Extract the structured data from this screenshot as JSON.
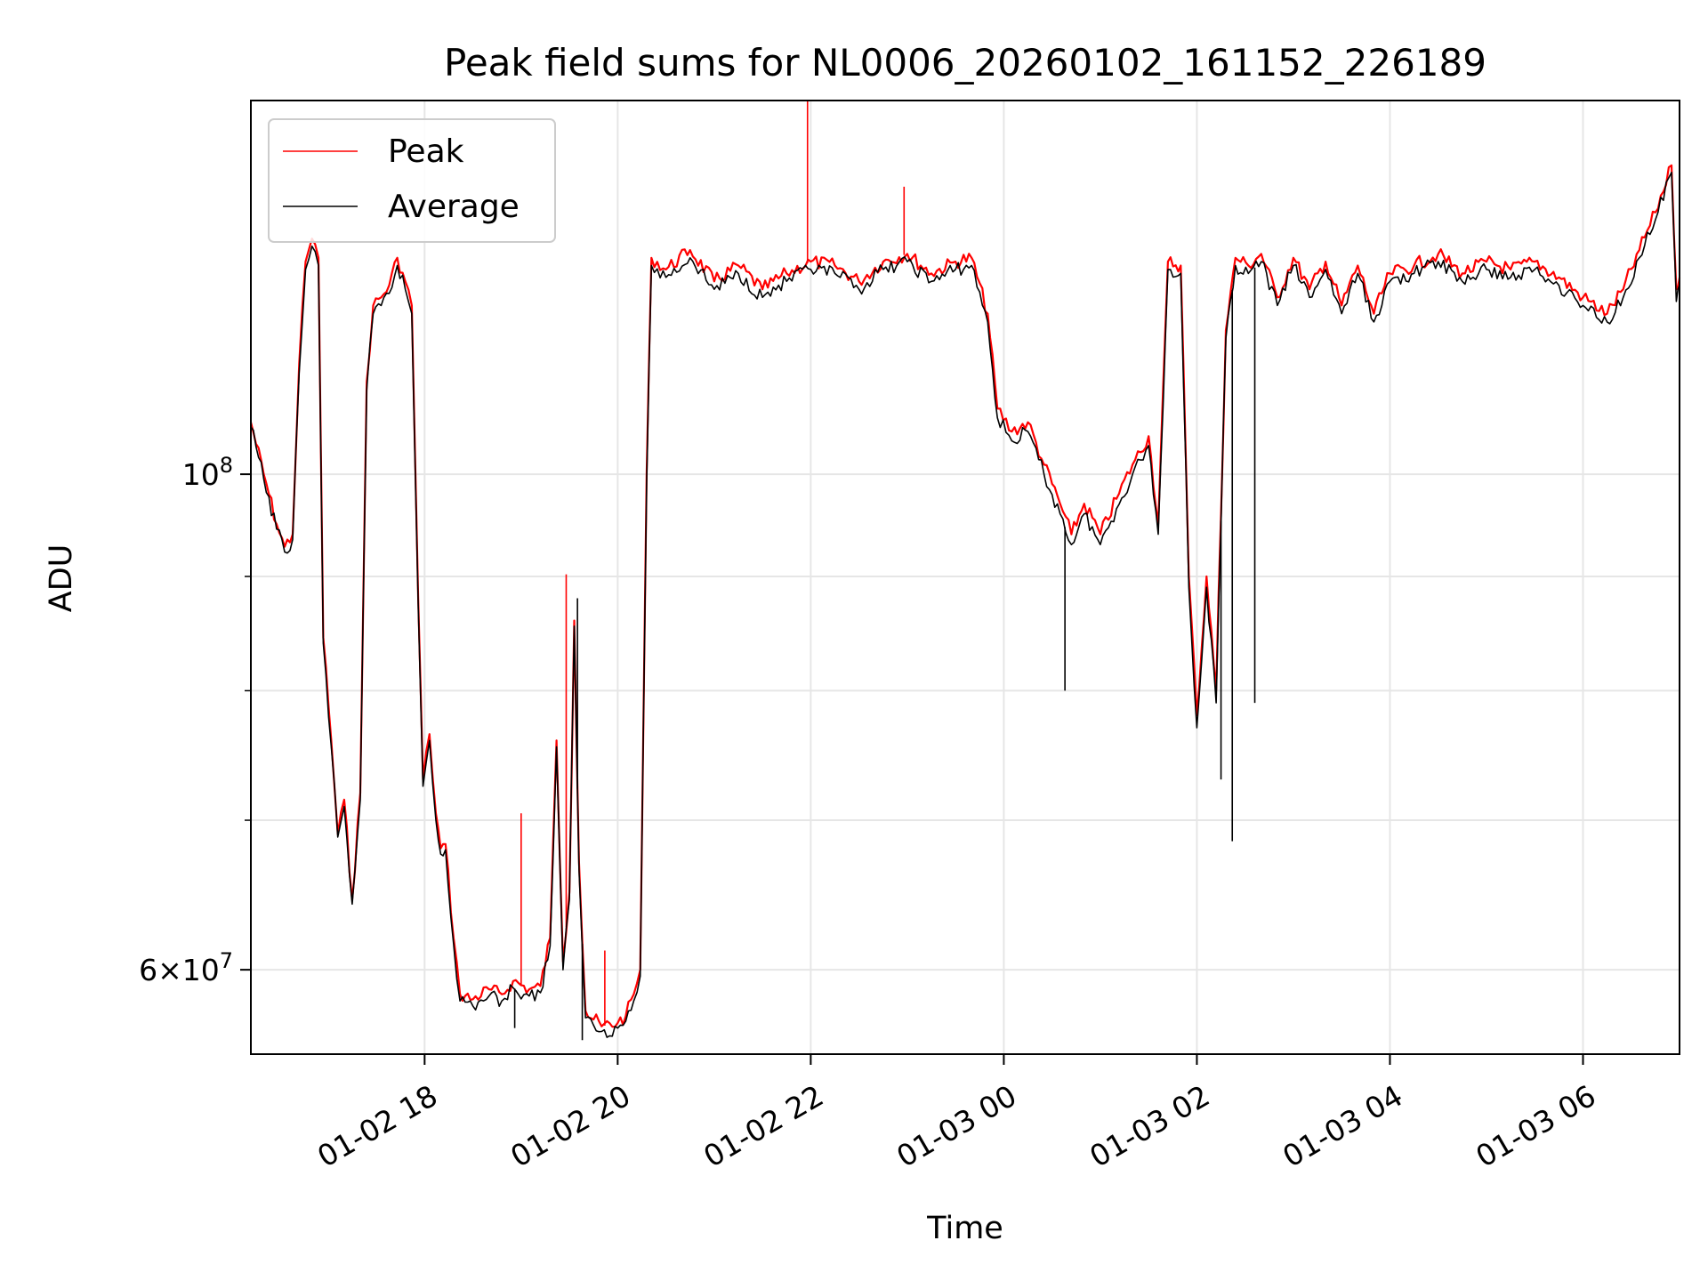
{
  "chart_data": {
    "type": "line",
    "title": "Peak field sums for NL0006_20260102_161152_226189",
    "xlabel": "Time",
    "ylabel": "ADU",
    "y_scale": "log",
    "grid": true,
    "legend_position": "top-left",
    "x_range": [
      "2026-01-02 16:12",
      "2026-01-03 07:00"
    ],
    "y_range": [
      55000000,
      147000000
    ],
    "x_ticks": [
      {
        "value": "2026-01-02 18:00",
        "label": "01-02 18"
      },
      {
        "value": "2026-01-02 20:00",
        "label": "01-02 20"
      },
      {
        "value": "2026-01-02 22:00",
        "label": "01-02 22"
      },
      {
        "value": "2026-01-03 00:00",
        "label": "01-03 00"
      },
      {
        "value": "2026-01-03 02:00",
        "label": "01-03 02"
      },
      {
        "value": "2026-01-03 04:00",
        "label": "01-03 04"
      },
      {
        "value": "2026-01-03 06:00",
        "label": "01-03 06"
      }
    ],
    "y_ticks_major": [
      {
        "value": 60000000,
        "label_base": "6",
        "label_exp": "7"
      },
      {
        "value": 100000000,
        "label_base": "10",
        "label_exp": "8"
      }
    ],
    "y_ticks_minor": [
      70000000,
      80000000,
      90000000
    ],
    "series": [
      {
        "name": "Peak",
        "color": "#ff0000",
        "points": [
          [
            "2026-01-02 16:12",
            105500000
          ],
          [
            "2026-01-02 16:20",
            100000000
          ],
          [
            "2026-01-02 16:28",
            95000000
          ],
          [
            "2026-01-02 16:33",
            92800000
          ],
          [
            "2026-01-02 16:38",
            94000000
          ],
          [
            "2026-01-02 16:42",
            112000000
          ],
          [
            "2026-01-02 16:46",
            124500000
          ],
          [
            "2026-01-02 16:50",
            127500000
          ],
          [
            "2026-01-02 16:54",
            125000000
          ],
          [
            "2026-01-02 16:57",
            84500000
          ],
          [
            "2026-01-02 17:02",
            76000000
          ],
          [
            "2026-01-02 17:06",
            69000000
          ],
          [
            "2026-01-02 17:10",
            71500000
          ],
          [
            "2026-01-02 17:15",
            64500000
          ],
          [
            "2026-01-02 17:20",
            72000000
          ],
          [
            "2026-01-02 17:24",
            110000000
          ],
          [
            "2026-01-02 17:28",
            119000000
          ],
          [
            "2026-01-02 17:33",
            120000000
          ],
          [
            "2026-01-02 17:38",
            121500000
          ],
          [
            "2026-01-02 17:43",
            125000000
          ],
          [
            "2026-01-02 17:48",
            122000000
          ],
          [
            "2026-01-02 17:52",
            119000000
          ],
          [
            "2026-01-02 17:56",
            88000000
          ],
          [
            "2026-01-02 17:59",
            73000000
          ],
          [
            "2026-01-02 18:03",
            76500000
          ],
          [
            "2026-01-02 18:07",
            70500000
          ],
          [
            "2026-01-02 18:10",
            68000000
          ],
          [
            "2026-01-02 18:13",
            68300000
          ],
          [
            "2026-01-02 18:18",
            62000000
          ],
          [
            "2026-01-02 18:22",
            58500000
          ],
          [
            "2026-01-02 18:30",
            58200000
          ],
          [
            "2026-01-02 18:40",
            58800000
          ],
          [
            "2026-01-02 18:48",
            58500000
          ],
          [
            "2026-01-02 18:55",
            59300000
          ],
          [
            "2026-01-02 19:05",
            58800000
          ],
          [
            "2026-01-02 19:12",
            59000000
          ],
          [
            "2026-01-02 19:18",
            62000000
          ],
          [
            "2026-01-02 19:22",
            76000000
          ],
          [
            "2026-01-02 19:26",
            60500000
          ],
          [
            "2026-01-02 19:30",
            65000000
          ],
          [
            "2026-01-02 19:33",
            86000000
          ],
          [
            "2026-01-02 19:36",
            67000000
          ],
          [
            "2026-01-02 19:40",
            57500000
          ],
          [
            "2026-01-02 19:50",
            56600000
          ],
          [
            "2026-01-02 20:00",
            56800000
          ],
          [
            "2026-01-02 20:05",
            57200000
          ],
          [
            "2026-01-02 20:10",
            58500000
          ],
          [
            "2026-01-02 20:14",
            60000000
          ],
          [
            "2026-01-02 20:18",
            100000000
          ],
          [
            "2026-01-02 20:21",
            125000000
          ],
          [
            "2026-01-02 20:30",
            123500000
          ],
          [
            "2026-01-02 20:45",
            126000000
          ],
          [
            "2026-01-02 21:00",
            122000000
          ],
          [
            "2026-01-02 21:15",
            124000000
          ],
          [
            "2026-01-02 21:30",
            121000000
          ],
          [
            "2026-01-02 21:45",
            123000000
          ],
          [
            "2026-01-02 22:00",
            124500000
          ],
          [
            "2026-01-02 22:15",
            124000000
          ],
          [
            "2026-01-02 22:30",
            122000000
          ],
          [
            "2026-01-02 22:45",
            124500000
          ],
          [
            "2026-01-02 23:00",
            125500000
          ],
          [
            "2026-01-02 23:15",
            123000000
          ],
          [
            "2026-01-02 23:30",
            124500000
          ],
          [
            "2026-01-02 23:40",
            125000000
          ],
          [
            "2026-01-02 23:50",
            118000000
          ],
          [
            "2026-01-02 23:56",
            107000000
          ],
          [
            "2026-01-03 00:05",
            104500000
          ],
          [
            "2026-01-03 00:15",
            105500000
          ],
          [
            "2026-01-03 00:25",
            101000000
          ],
          [
            "2026-01-03 00:35",
            97000000
          ],
          [
            "2026-01-03 00:42",
            94000000
          ],
          [
            "2026-01-03 00:50",
            97000000
          ],
          [
            "2026-01-03 01:00",
            94000000
          ],
          [
            "2026-01-03 01:10",
            97500000
          ],
          [
            "2026-01-03 01:20",
            101000000
          ],
          [
            "2026-01-03 01:30",
            104000000
          ],
          [
            "2026-01-03 01:36",
            95000000
          ],
          [
            "2026-01-03 01:42",
            124500000
          ],
          [
            "2026-01-03 01:50",
            124000000
          ],
          [
            "2026-01-03 01:55",
            90000000
          ],
          [
            "2026-01-03 02:00",
            78000000
          ],
          [
            "2026-01-03 02:06",
            90000000
          ],
          [
            "2026-01-03 02:12",
            80000000
          ],
          [
            "2026-01-03 02:18",
            116000000
          ],
          [
            "2026-01-03 02:24",
            125000000
          ],
          [
            "2026-01-03 02:32",
            124000000
          ],
          [
            "2026-01-03 02:40",
            125500000
          ],
          [
            "2026-01-03 02:50",
            120000000
          ],
          [
            "2026-01-03 03:00",
            125000000
          ],
          [
            "2026-01-03 03:10",
            121000000
          ],
          [
            "2026-01-03 03:20",
            124500000
          ],
          [
            "2026-01-03 03:30",
            119000000
          ],
          [
            "2026-01-03 03:40",
            124000000
          ],
          [
            "2026-01-03 03:50",
            118000000
          ],
          [
            "2026-01-03 04:00",
            123000000
          ],
          [
            "2026-01-03 04:15",
            124000000
          ],
          [
            "2026-01-03 04:30",
            125500000
          ],
          [
            "2026-01-03 04:45",
            123000000
          ],
          [
            "2026-01-03 05:00",
            124500000
          ],
          [
            "2026-01-03 05:15",
            123500000
          ],
          [
            "2026-01-03 05:30",
            124500000
          ],
          [
            "2026-01-03 05:45",
            122500000
          ],
          [
            "2026-01-03 06:00",
            120000000
          ],
          [
            "2026-01-03 06:15",
            118000000
          ],
          [
            "2026-01-03 06:25",
            121000000
          ],
          [
            "2026-01-03 06:35",
            126000000
          ],
          [
            "2026-01-03 06:45",
            131000000
          ],
          [
            "2026-01-03 06:55",
            137500000
          ],
          [
            "2026-01-03 06:58",
            121000000
          ],
          [
            "2026-01-03 07:00",
            122500000
          ]
        ],
        "spikes": [
          [
            "2026-01-02 19:00",
            70500000
          ],
          [
            "2026-01-02 19:28",
            90200000
          ],
          [
            "2026-01-02 19:52",
            61200000
          ],
          [
            "2026-01-02 21:58",
            147000000
          ],
          [
            "2026-01-02 22:58",
            134500000
          ]
        ]
      },
      {
        "name": "Average",
        "color": "#000000",
        "points": [
          [
            "2026-01-02 16:12",
            105000000
          ],
          [
            "2026-01-02 16:20",
            99500000
          ],
          [
            "2026-01-02 16:28",
            94500000
          ],
          [
            "2026-01-02 16:33",
            92300000
          ],
          [
            "2026-01-02 16:38",
            93500000
          ],
          [
            "2026-01-02 16:42",
            111000000
          ],
          [
            "2026-01-02 16:46",
            123500000
          ],
          [
            "2026-01-02 16:50",
            126500000
          ],
          [
            "2026-01-02 16:54",
            124000000
          ],
          [
            "2026-01-02 16:57",
            84000000
          ],
          [
            "2026-01-02 17:02",
            75500000
          ],
          [
            "2026-01-02 17:06",
            68800000
          ],
          [
            "2026-01-02 17:10",
            71000000
          ],
          [
            "2026-01-02 17:15",
            64200000
          ],
          [
            "2026-01-02 17:20",
            71500000
          ],
          [
            "2026-01-02 17:24",
            109000000
          ],
          [
            "2026-01-02 17:28",
            118000000
          ],
          [
            "2026-01-02 17:33",
            119000000
          ],
          [
            "2026-01-02 17:38",
            120500000
          ],
          [
            "2026-01-02 17:43",
            124000000
          ],
          [
            "2026-01-02 17:48",
            121000000
          ],
          [
            "2026-01-02 17:52",
            118000000
          ],
          [
            "2026-01-02 17:56",
            87500000
          ],
          [
            "2026-01-02 17:59",
            72500000
          ],
          [
            "2026-01-02 18:03",
            76000000
          ],
          [
            "2026-01-02 18:07",
            70000000
          ],
          [
            "2026-01-02 18:10",
            67600000
          ],
          [
            "2026-01-02 18:13",
            67900000
          ],
          [
            "2026-01-02 18:18",
            61600000
          ],
          [
            "2026-01-02 18:22",
            58100000
          ],
          [
            "2026-01-02 18:30",
            57800000
          ],
          [
            "2026-01-02 18:40",
            58400000
          ],
          [
            "2026-01-02 18:48",
            58100000
          ],
          [
            "2026-01-02 18:55",
            58900000
          ],
          [
            "2026-01-02 19:05",
            58400000
          ],
          [
            "2026-01-02 19:12",
            58600000
          ],
          [
            "2026-01-02 19:18",
            61500000
          ],
          [
            "2026-01-02 19:22",
            75500000
          ],
          [
            "2026-01-02 19:26",
            60000000
          ],
          [
            "2026-01-02 19:30",
            64500000
          ],
          [
            "2026-01-02 19:33",
            85500000
          ],
          [
            "2026-01-02 19:36",
            66500000
          ],
          [
            "2026-01-02 19:40",
            57100000
          ],
          [
            "2026-01-02 19:50",
            56300000
          ],
          [
            "2026-01-02 20:00",
            56500000
          ],
          [
            "2026-01-02 20:05",
            56900000
          ],
          [
            "2026-01-02 20:10",
            58100000
          ],
          [
            "2026-01-02 20:14",
            59600000
          ],
          [
            "2026-01-02 20:18",
            99000000
          ],
          [
            "2026-01-02 20:21",
            124000000
          ],
          [
            "2026-01-02 20:30",
            122500000
          ],
          [
            "2026-01-02 20:45",
            125000000
          ],
          [
            "2026-01-02 21:00",
            121000000
          ],
          [
            "2026-01-02 21:15",
            123000000
          ],
          [
            "2026-01-02 21:30",
            120000000
          ],
          [
            "2026-01-02 21:45",
            122000000
          ],
          [
            "2026-01-02 22:00",
            123500000
          ],
          [
            "2026-01-02 22:15",
            123000000
          ],
          [
            "2026-01-02 22:30",
            121000000
          ],
          [
            "2026-01-02 22:45",
            123500000
          ],
          [
            "2026-01-02 23:00",
            124500000
          ],
          [
            "2026-01-02 23:15",
            122000000
          ],
          [
            "2026-01-02 23:30",
            123500000
          ],
          [
            "2026-01-02 23:40",
            124000000
          ],
          [
            "2026-01-02 23:50",
            117000000
          ],
          [
            "2026-01-02 23:56",
            106000000
          ],
          [
            "2026-01-03 00:05",
            103500000
          ],
          [
            "2026-01-03 00:15",
            104500000
          ],
          [
            "2026-01-03 00:25",
            100000000
          ],
          [
            "2026-01-03 00:35",
            96000000
          ],
          [
            "2026-01-03 00:42",
            93000000
          ],
          [
            "2026-01-03 00:50",
            96000000
          ],
          [
            "2026-01-03 01:00",
            93000000
          ],
          [
            "2026-01-03 01:10",
            96500000
          ],
          [
            "2026-01-03 01:20",
            100000000
          ],
          [
            "2026-01-03 01:30",
            103000000
          ],
          [
            "2026-01-03 01:36",
            94000000
          ],
          [
            "2026-01-03 01:42",
            123500000
          ],
          [
            "2026-01-03 01:50",
            123000000
          ],
          [
            "2026-01-03 01:55",
            89000000
          ],
          [
            "2026-01-03 02:00",
            77000000
          ],
          [
            "2026-01-03 02:06",
            89000000
          ],
          [
            "2026-01-03 02:12",
            79000000
          ],
          [
            "2026-01-03 02:18",
            115000000
          ],
          [
            "2026-01-03 02:24",
            124000000
          ],
          [
            "2026-01-03 02:32",
            123000000
          ],
          [
            "2026-01-03 02:40",
            124500000
          ],
          [
            "2026-01-03 02:50",
            119000000
          ],
          [
            "2026-01-03 03:00",
            124000000
          ],
          [
            "2026-01-03 03:10",
            120000000
          ],
          [
            "2026-01-03 03:20",
            123500000
          ],
          [
            "2026-01-03 03:30",
            118000000
          ],
          [
            "2026-01-03 03:40",
            123000000
          ],
          [
            "2026-01-03 03:50",
            117000000
          ],
          [
            "2026-01-03 04:00",
            122000000
          ],
          [
            "2026-01-03 04:15",
            123000000
          ],
          [
            "2026-01-03 04:30",
            124500000
          ],
          [
            "2026-01-03 04:45",
            122000000
          ],
          [
            "2026-01-03 05:00",
            123500000
          ],
          [
            "2026-01-03 05:15",
            122500000
          ],
          [
            "2026-01-03 05:30",
            123500000
          ],
          [
            "2026-01-03 05:45",
            121500000
          ],
          [
            "2026-01-03 06:00",
            119000000
          ],
          [
            "2026-01-03 06:15",
            117000000
          ],
          [
            "2026-01-03 06:25",
            120000000
          ],
          [
            "2026-01-03 06:35",
            125000000
          ],
          [
            "2026-01-03 06:45",
            130000000
          ],
          [
            "2026-01-03 06:55",
            136500000
          ],
          [
            "2026-01-03 06:58",
            119500000
          ],
          [
            "2026-01-03 07:00",
            121500000
          ]
        ],
        "spikes": [
          [
            "2026-01-02 18:56",
            56500000
          ],
          [
            "2026-01-02 19:38",
            55800000
          ],
          [
            "2026-01-02 19:35",
            88000000
          ],
          [
            "2026-01-03 00:38",
            80000000
          ],
          [
            "2026-01-03 02:15",
            73000000
          ],
          [
            "2026-01-03 02:22",
            68500000
          ],
          [
            "2026-01-03 02:36",
            79000000
          ]
        ]
      }
    ]
  }
}
